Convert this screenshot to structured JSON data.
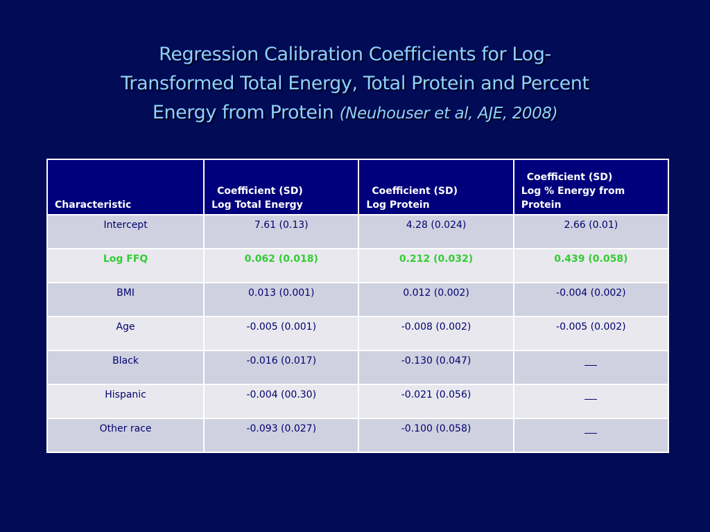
{
  "title": {
    "line1": "Regression Calibration Coefficients for Log-",
    "line2": "Transformed Total Energy, Total Protein and Percent",
    "line3": "Energy from Protein",
    "citation": "(Neuhouser et al, AJE, 2008)"
  },
  "table": {
    "headers": [
      {
        "line1": "",
        "line2": "Characteristic"
      },
      {
        "line1": "Coefficient (SD)",
        "line2": "Log Total Energy"
      },
      {
        "line1": "Coefficient (SD)",
        "line2": "Log Protein"
      },
      {
        "line1": "Coefficient (SD)",
        "line2": "Log % Energy from Protein"
      }
    ],
    "rows": [
      {
        "label": "Intercept",
        "c1": "7.61  (0.13)",
        "c2": "4.28  (0.024)",
        "c3": "2.66  (0.01)",
        "highlight": false
      },
      {
        "label": "Log FFQ",
        "c1": "0.062  (0.018)",
        "c2": "0.212  (0.032)",
        "c3": "0.439  (0.058)",
        "highlight": true
      },
      {
        "label": "BMI",
        "c1": "0.013  (0.001)",
        "c2": "0.012  (0.002)",
        "c3": "-0.004  (0.002)",
        "highlight": false
      },
      {
        "label": "Age",
        "c1": "-0.005  (0.001)",
        "c2": "-0.008  (0.002)",
        "c3": "-0.005  (0.002)",
        "highlight": false
      },
      {
        "label": "Black",
        "c1": "-0.016  (0.017)",
        "c2": "-0.130  (0.047)",
        "c3": "",
        "highlight": false
      },
      {
        "label": "Hispanic",
        "c1": "-0.004  (00.30)",
        "c2": "-0.021  (0.056)",
        "c3": "",
        "highlight": false
      },
      {
        "label": "Other race",
        "c1": "-0.093  (0.027)",
        "c2": "-0.100  (0.058)",
        "c3": "",
        "highlight": false
      }
    ]
  },
  "colors": {
    "background": "#010b56",
    "title": "#8fd0ff",
    "header_bg": "#00007c",
    "row_odd": "#cfd1e0",
    "row_even": "#e8e8ee",
    "highlight_text": "#33cc33",
    "cell_text": "#00006e"
  }
}
